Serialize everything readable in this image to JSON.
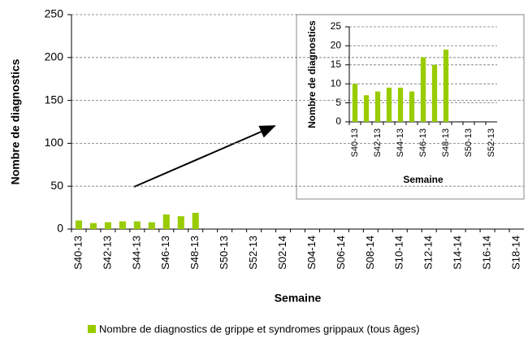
{
  "chart_data": [
    {
      "type": "bar",
      "x_label": "Semaine",
      "y_label": "Nombre de diagnostics",
      "categories": [
        "S40-13",
        null,
        "S42-13",
        null,
        "S44-13",
        null,
        "S46-13",
        null,
        "S48-13",
        null,
        "S50-13",
        null,
        "S52-13",
        null,
        "S02-14",
        null,
        "S04-14",
        null,
        "S06-14",
        null,
        "S08-14",
        null,
        "S10-14",
        null,
        "S12-14",
        null,
        "S14-14",
        null,
        "S16-14",
        null,
        "S18-14"
      ],
      "series": [
        {
          "name": "Nombre de diagnostics de grippe et syndromes grippaux (tous âges)",
          "color": "#99cc00",
          "values": [
            10,
            7,
            8,
            9,
            9,
            8,
            17,
            15,
            19,
            null,
            null,
            null,
            null,
            null,
            null,
            null,
            null,
            null,
            null,
            null,
            null,
            null,
            null,
            null,
            null,
            null,
            null,
            null,
            null,
            null,
            null
          ]
        }
      ],
      "ylim": [
        0,
        250
      ],
      "yticks": [
        0,
        50,
        100,
        150,
        200,
        250
      ],
      "grid": true,
      "legend": "bottom"
    },
    {
      "type": "bar",
      "x_label": "Semaine",
      "y_label": "Nombre de diagnostics",
      "categories": [
        "S40-13",
        null,
        "S42-13",
        null,
        "S44-13",
        null,
        "S46-13",
        null,
        "S48-13",
        null,
        "S50-13",
        null,
        "S52-13"
      ],
      "series": [
        {
          "color": "#99cc00",
          "values": [
            10,
            7,
            8,
            9,
            9,
            8,
            17,
            15,
            19,
            null,
            null,
            null,
            null
          ]
        }
      ],
      "ylim": [
        0,
        25
      ],
      "yticks": [
        0,
        5,
        10,
        15,
        20,
        25
      ],
      "grid": true
    }
  ]
}
